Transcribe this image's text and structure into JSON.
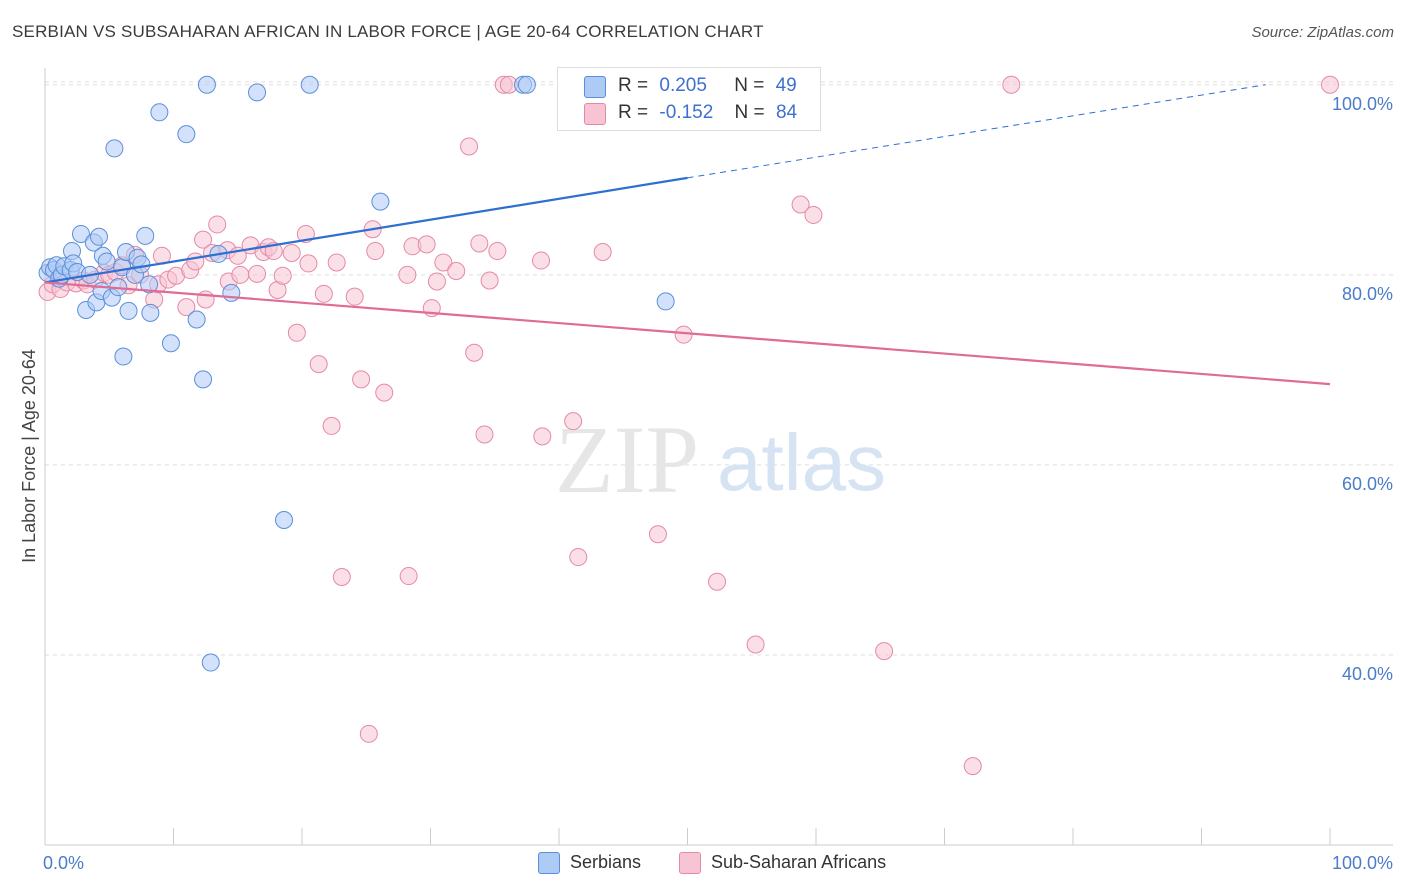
{
  "title": "SERBIAN VS SUBSAHARAN AFRICAN IN LABOR FORCE | AGE 20-64 CORRELATION CHART",
  "source": "Source: ZipAtlas.com",
  "watermark": {
    "zip": "ZIP",
    "atlas": "atlas"
  },
  "legend": {
    "row1": {
      "r_label": "R =",
      "r_value": "0.205",
      "n_label": "N =",
      "n_value": "49"
    },
    "row2": {
      "r_label": "R =",
      "r_value": "-0.152",
      "n_label": "N =",
      "n_value": "84"
    }
  },
  "bottom_legend": {
    "serbians": "Serbians",
    "subsaharan": "Sub-Saharan Africans"
  },
  "colors": {
    "blue_fill": "#aecbf5",
    "blue_stroke": "#5b8fd9",
    "blue_line": "#2e6fd1",
    "pink_fill": "#f7c4d4",
    "pink_stroke": "#e689a8",
    "pink_line": "#e06a98",
    "grid": "#dddddd",
    "tick_text": "#4a7cc9"
  },
  "chart_data": {
    "type": "scatter",
    "ylabel": "In Labor Force | Age 20-64",
    "xlim": [
      0,
      100
    ],
    "ylim": [
      20,
      102
    ],
    "x_tick_labels": [
      "0.0%",
      "100.0%"
    ],
    "y_ticks": [
      40,
      60,
      80,
      100
    ],
    "y_tick_labels": [
      "40.0%",
      "60.0%",
      "80.0%",
      "100.0%"
    ],
    "grid": "horizontal dashed",
    "series": [
      {
        "name": "Serbians",
        "trend": {
          "x0": 0,
          "y0": 79.2,
          "x1": 50,
          "y1": 90.2,
          "dashed_to_x": 95,
          "dashed_to_y": 100
        },
        "points": [
          [
            0.2,
            80.2
          ],
          [
            0.4,
            80.8
          ],
          [
            0.7,
            80.5
          ],
          [
            0.9,
            81.0
          ],
          [
            1.1,
            79.6
          ],
          [
            1.3,
            80.0
          ],
          [
            1.5,
            80.9
          ],
          [
            2.0,
            80.5
          ],
          [
            2.1,
            82.5
          ],
          [
            2.2,
            81.2
          ],
          [
            2.5,
            80.3
          ],
          [
            2.8,
            84.3
          ],
          [
            3.2,
            76.3
          ],
          [
            3.5,
            80.0
          ],
          [
            3.8,
            83.4
          ],
          [
            4.0,
            77.1
          ],
          [
            4.2,
            84.0
          ],
          [
            4.4,
            78.3
          ],
          [
            4.5,
            82.0
          ],
          [
            4.8,
            81.4
          ],
          [
            5.2,
            77.6
          ],
          [
            5.4,
            93.3
          ],
          [
            5.7,
            78.7
          ],
          [
            6.0,
            80.8
          ],
          [
            6.1,
            71.4
          ],
          [
            6.3,
            82.4
          ],
          [
            6.5,
            76.2
          ],
          [
            7.0,
            80.0
          ],
          [
            7.2,
            81.8
          ],
          [
            7.5,
            81.1
          ],
          [
            7.8,
            84.1
          ],
          [
            8.1,
            79.0
          ],
          [
            8.2,
            76.0
          ],
          [
            8.9,
            97.1
          ],
          [
            9.8,
            72.8
          ],
          [
            11.0,
            94.8
          ],
          [
            11.8,
            75.3
          ],
          [
            12.3,
            69.0
          ],
          [
            12.6,
            100.0
          ],
          [
            12.9,
            39.2
          ],
          [
            13.5,
            82.2
          ],
          [
            14.5,
            78.1
          ],
          [
            16.5,
            99.2
          ],
          [
            18.6,
            54.2
          ],
          [
            20.6,
            100.0
          ],
          [
            26.1,
            87.7
          ],
          [
            37.2,
            100.0
          ],
          [
            37.5,
            100.0
          ],
          [
            48.3,
            77.2
          ]
        ]
      },
      {
        "name": "Sub-Saharan Africans",
        "trend": {
          "x0": 0,
          "y0": 79.2,
          "x1": 100,
          "y1": 68.5
        },
        "points": [
          [
            0.2,
            78.2
          ],
          [
            0.6,
            79.0
          ],
          [
            1.2,
            78.5
          ],
          [
            1.7,
            79.2
          ],
          [
            2.4,
            79.1
          ],
          [
            3.0,
            79.4
          ],
          [
            3.3,
            79.0
          ],
          [
            3.9,
            79.5
          ],
          [
            4.6,
            80.2
          ],
          [
            5.0,
            80.0
          ],
          [
            5.5,
            80.3
          ],
          [
            6.0,
            81.0
          ],
          [
            6.5,
            78.9
          ],
          [
            7.0,
            82.1
          ],
          [
            7.4,
            80.0
          ],
          [
            8.5,
            77.4
          ],
          [
            8.8,
            79.0
          ],
          [
            9.1,
            82.0
          ],
          [
            9.6,
            79.5
          ],
          [
            10.2,
            79.9
          ],
          [
            11.0,
            76.6
          ],
          [
            11.3,
            80.5
          ],
          [
            11.7,
            81.4
          ],
          [
            12.5,
            77.4
          ],
          [
            12.3,
            83.7
          ],
          [
            13.0,
            82.3
          ],
          [
            13.4,
            85.3
          ],
          [
            14.2,
            82.6
          ],
          [
            14.3,
            79.3
          ],
          [
            15.0,
            82.0
          ],
          [
            15.2,
            80.0
          ],
          [
            16.0,
            83.1
          ],
          [
            16.5,
            80.1
          ],
          [
            17.0,
            82.4
          ],
          [
            17.4,
            82.9
          ],
          [
            17.8,
            82.5
          ],
          [
            18.1,
            78.4
          ],
          [
            18.5,
            79.9
          ],
          [
            19.2,
            82.3
          ],
          [
            19.6,
            73.9
          ],
          [
            20.3,
            84.3
          ],
          [
            20.5,
            81.2
          ],
          [
            21.3,
            70.6
          ],
          [
            21.7,
            78.0
          ],
          [
            22.3,
            64.1
          ],
          [
            22.7,
            81.3
          ],
          [
            23.1,
            48.2
          ],
          [
            24.1,
            77.7
          ],
          [
            24.6,
            69.0
          ],
          [
            25.2,
            31.7
          ],
          [
            25.5,
            84.8
          ],
          [
            25.7,
            82.5
          ],
          [
            26.4,
            67.6
          ],
          [
            28.2,
            80.0
          ],
          [
            28.6,
            83.0
          ],
          [
            28.3,
            48.3
          ],
          [
            29.7,
            83.2
          ],
          [
            30.1,
            76.5
          ],
          [
            30.5,
            79.3
          ],
          [
            31.0,
            81.3
          ],
          [
            33.0,
            93.5
          ],
          [
            33.4,
            71.8
          ],
          [
            33.8,
            83.3
          ],
          [
            34.2,
            63.2
          ],
          [
            35.2,
            82.5
          ],
          [
            35.7,
            100.0
          ],
          [
            36.1,
            100.0
          ],
          [
            38.6,
            81.5
          ],
          [
            38.7,
            63.0
          ],
          [
            41.5,
            50.3
          ],
          [
            41.1,
            64.6
          ],
          [
            43.4,
            82.4
          ],
          [
            47.7,
            52.7
          ],
          [
            49.7,
            73.7
          ],
          [
            52.3,
            47.7
          ],
          [
            55.3,
            41.1
          ],
          [
            58.8,
            87.4
          ],
          [
            59.8,
            86.3
          ],
          [
            65.3,
            40.4
          ],
          [
            72.2,
            28.3
          ],
          [
            75.2,
            100.0
          ],
          [
            100.0,
            100.0
          ],
          [
            32.0,
            80.4
          ],
          [
            34.6,
            79.4
          ]
        ]
      }
    ]
  }
}
